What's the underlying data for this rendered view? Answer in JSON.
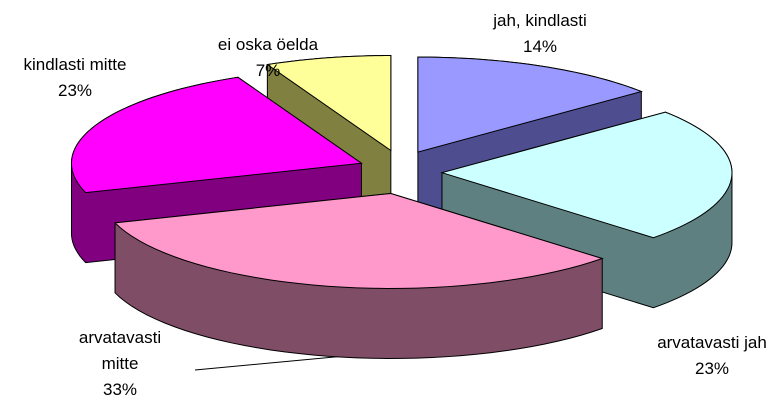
{
  "chart_data": {
    "type": "pie3d",
    "categories": [
      "jah, kindlasti",
      "arvatavasti jah",
      "arvatavasti mitte",
      "kindlasti mitte",
      "ei oska öelda"
    ],
    "values": [
      14,
      23,
      33,
      23,
      7
    ],
    "value_labels": [
      "14%",
      "23%",
      "33%",
      "23%",
      "7%"
    ],
    "colors": [
      "#9999ff",
      "#ccffff",
      "#ff99cc",
      "#ff00ff",
      "#ffff99"
    ],
    "side_colors": [
      "#4d4d8f",
      "#5f8080",
      "#804d66",
      "#800080",
      "#808040"
    ]
  }
}
